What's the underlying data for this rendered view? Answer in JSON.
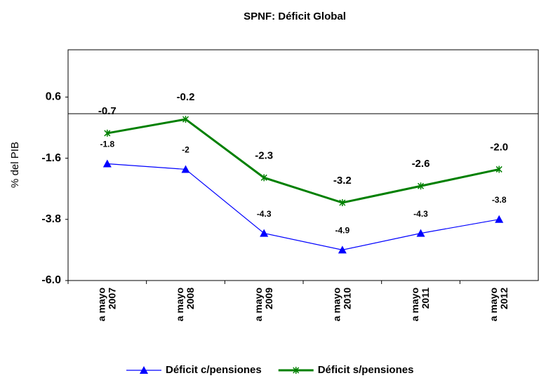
{
  "chart_data": {
    "type": "line",
    "title": "SPNF: Déficit Global",
    "y_label": "% del PIB",
    "categories": [
      [
        "a mayo",
        "2007"
      ],
      [
        "a mayo",
        "2008"
      ],
      [
        "a mayo",
        "2009"
      ],
      [
        "a mayo",
        "2010"
      ],
      [
        "a mayo",
        "2011"
      ],
      [
        "a mayo",
        "2012"
      ]
    ],
    "series": [
      {
        "name": "Déficit c/pensiones",
        "color": "#0000ff",
        "marker": "triangle",
        "values": [
          -1.8,
          -2,
          -4.3,
          -4.9,
          -4.3,
          -3.8
        ],
        "value_labels": [
          "-1.8",
          "-2",
          "-4.3",
          "-4.9",
          "-4.3",
          "-3.8"
        ]
      },
      {
        "name": "Déficit s/pensiones",
        "color": "#008000",
        "marker": "star",
        "values": [
          -0.7,
          -0.2,
          -2.3,
          -3.2,
          -2.6,
          -2.0
        ],
        "value_labels": [
          "-0.7",
          "-0.2",
          "-2.3",
          "-3.2",
          "-2.6",
          "-2.0"
        ]
      }
    ],
    "ylim": [
      -6.0,
      2.3
    ],
    "yticks": [
      {
        "value": -6.0,
        "label": "-6.0"
      },
      -3.8,
      -1.6,
      0.6
    ],
    "legend": "bottom"
  }
}
